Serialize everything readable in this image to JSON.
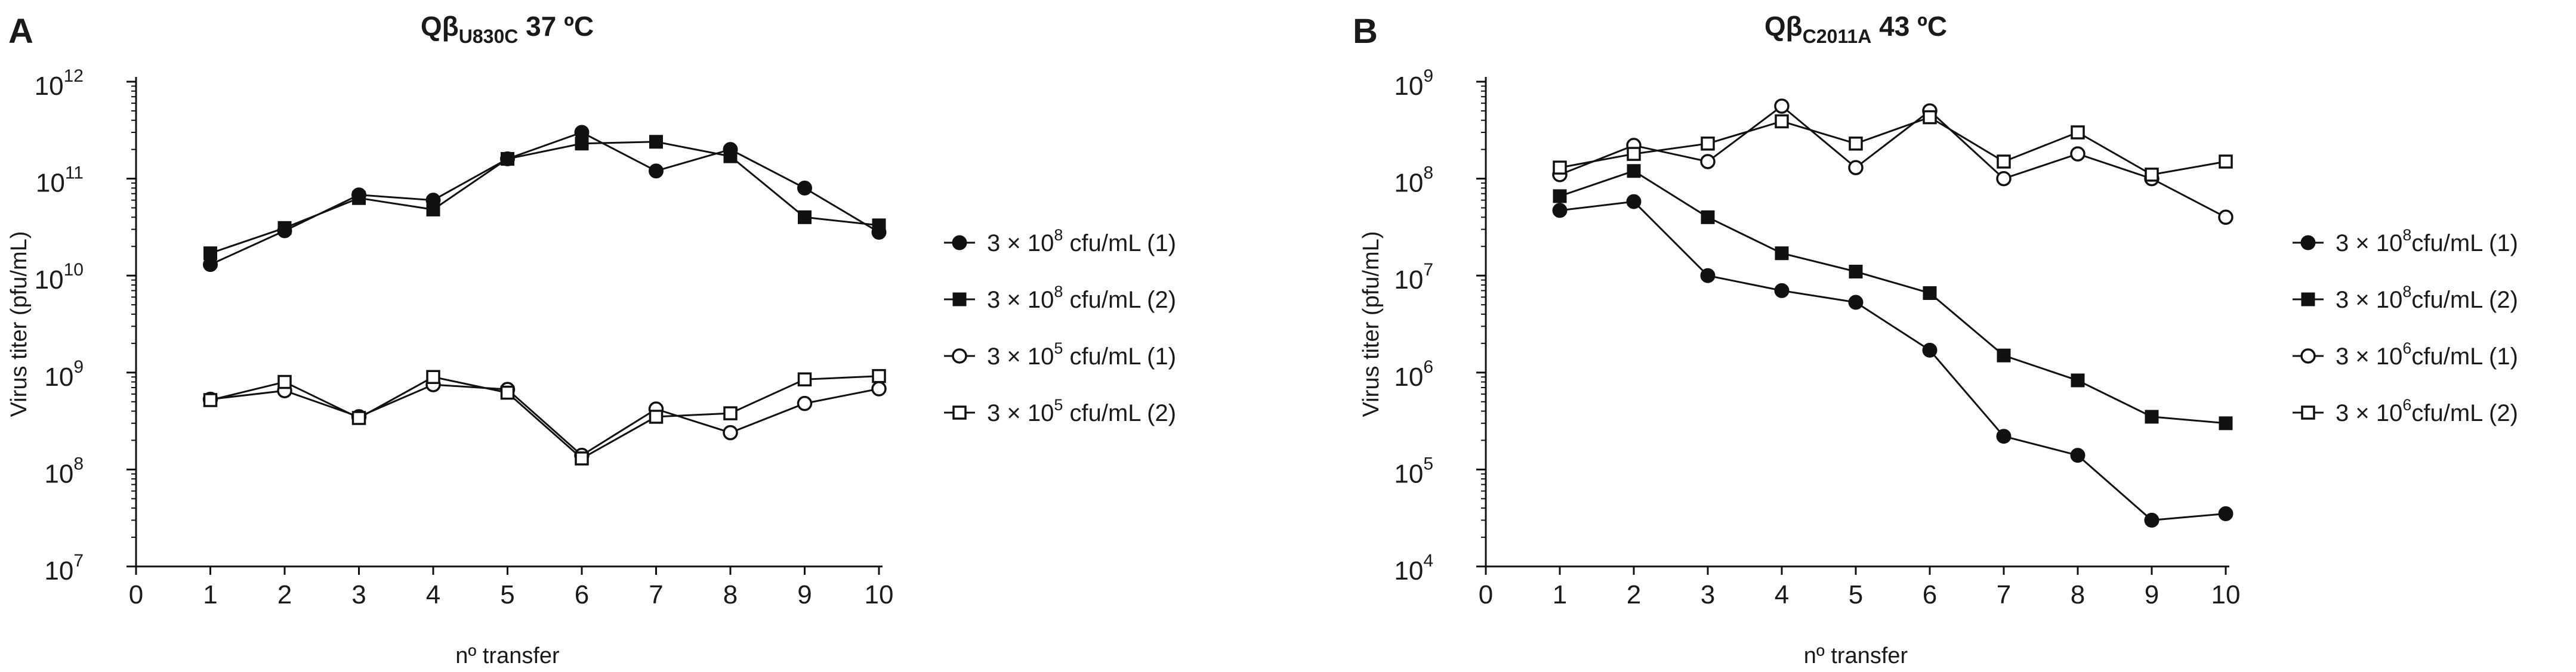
{
  "chart_data": [
    {
      "type": "line",
      "panel_label": "A",
      "title": {
        "main": "Qβ",
        "sub": "U830C",
        "suffix": " 37 ºC"
      },
      "xlabel": "nº transfer",
      "ylabel": "Virus titer (pfu/mL)",
      "xlim": [
        0,
        10
      ],
      "xticks": [
        "0",
        "1",
        "2",
        "3",
        "4",
        "5",
        "6",
        "7",
        "8",
        "9",
        "10"
      ],
      "y_scale": "log",
      "ylim_exp": [
        7,
        12
      ],
      "yticks": [
        {
          "base": "10",
          "exp": "7"
        },
        {
          "base": "10",
          "exp": "8"
        },
        {
          "base": "10",
          "exp": "9"
        },
        {
          "base": "10",
          "exp": "10"
        },
        {
          "base": "10",
          "exp": "11"
        },
        {
          "base": "10",
          "exp": "12"
        }
      ],
      "grid": false,
      "legend_position": "right",
      "series": [
        {
          "name": {
            "pre": "3 × 10",
            "sup": "8",
            "post": " cfu/mL (1)"
          },
          "marker": "filled-circle",
          "x": [
            1,
            2,
            3,
            4,
            5,
            6,
            7,
            8,
            9,
            10
          ],
          "y": [
            13000000000.0,
            29000000000.0,
            68000000000.0,
            60000000000.0,
            160000000000.0,
            300000000000.0,
            120000000000.0,
            200000000000.0,
            80000000000.0,
            28000000000.0
          ]
        },
        {
          "name": {
            "pre": "3 × 10",
            "sup": "8",
            "post": " cfu/mL (2)"
          },
          "marker": "filled-square",
          "x": [
            1,
            2,
            3,
            4,
            5,
            6,
            7,
            8,
            9,
            10
          ],
          "y": [
            17000000000.0,
            31000000000.0,
            63000000000.0,
            48000000000.0,
            160000000000.0,
            230000000000.0,
            240000000000.0,
            170000000000.0,
            40000000000.0,
            33000000000.0
          ]
        },
        {
          "name": {
            "pre": "3 × 10",
            "sup": "5",
            "post": " cfu/mL (1)"
          },
          "marker": "open-circle",
          "x": [
            1,
            2,
            3,
            4,
            5,
            6,
            7,
            8,
            9,
            10
          ],
          "y": [
            530000000.0,
            650000000.0,
            350000000.0,
            750000000.0,
            670000000.0,
            140000000.0,
            420000000.0,
            240000000.0,
            480000000.0,
            680000000.0
          ]
        },
        {
          "name": {
            "pre": "3 × 10",
            "sup": "5",
            "post": " cfu/mL (2)"
          },
          "marker": "open-square",
          "x": [
            1,
            2,
            3,
            4,
            5,
            6,
            7,
            8,
            9,
            10
          ],
          "y": [
            520000000.0,
            800000000.0,
            340000000.0,
            900000000.0,
            620000000.0,
            130000000.0,
            350000000.0,
            380000000.0,
            850000000.0,
            920000000.0
          ]
        }
      ]
    },
    {
      "type": "line",
      "panel_label": "B",
      "title": {
        "main": "Qβ",
        "sub": "C2011A",
        "suffix": " 43 ºC"
      },
      "xlabel": "nº transfer",
      "ylabel": "Virus titer (pfu/mL)",
      "xlim": [
        0,
        10
      ],
      "xticks": [
        "0",
        "1",
        "2",
        "3",
        "4",
        "5",
        "6",
        "7",
        "8",
        "9",
        "10"
      ],
      "y_scale": "log",
      "ylim_exp": [
        4,
        9
      ],
      "yticks": [
        {
          "base": "10",
          "exp": "4"
        },
        {
          "base": "10",
          "exp": "5"
        },
        {
          "base": "10",
          "exp": "6"
        },
        {
          "base": "10",
          "exp": "7"
        },
        {
          "base": "10",
          "exp": "8"
        },
        {
          "base": "10",
          "exp": "9"
        }
      ],
      "grid": false,
      "legend_position": "right",
      "series": [
        {
          "name": {
            "pre": "3 × 10",
            "sup": "8",
            "post": "cfu/mL (1)"
          },
          "marker": "filled-circle",
          "x": [
            1,
            2,
            3,
            4,
            5,
            6,
            7,
            8,
            9,
            10
          ],
          "y": [
            47000000.0,
            58000000.0,
            10000000.0,
            7000000.0,
            5300000.0,
            1700000.0,
            220000.0,
            140000.0,
            30000.0,
            35000.0
          ]
        },
        {
          "name": {
            "pre": "3 × 10",
            "sup": "8",
            "post": "cfu/mL (2)"
          },
          "marker": "filled-square",
          "x": [
            1,
            2,
            3,
            4,
            5,
            6,
            7,
            8,
            9,
            10
          ],
          "y": [
            66000000.0,
            120000000.0,
            40000000.0,
            17000000.0,
            11000000.0,
            6600000.0,
            1500000.0,
            830000.0,
            350000.0,
            300000.0
          ]
        },
        {
          "name": {
            "pre": "3 × 10",
            "sup": "6",
            "post": "cfu/mL (1)"
          },
          "marker": "open-circle",
          "x": [
            1,
            2,
            3,
            4,
            5,
            6,
            7,
            8,
            9,
            10
          ],
          "y": [
            110000000.0,
            220000000.0,
            150000000.0,
            560000000.0,
            130000000.0,
            500000000.0,
            100000000.0,
            180000000.0,
            100000000.0,
            40000000.0
          ]
        },
        {
          "name": {
            "pre": "3 × 10",
            "sup": "6",
            "post": "cfu/mL (2)"
          },
          "marker": "open-square",
          "x": [
            1,
            2,
            3,
            4,
            5,
            6,
            7,
            8,
            9,
            10
          ],
          "y": [
            130000000.0,
            180000000.0,
            230000000.0,
            390000000.0,
            230000000.0,
            430000000.0,
            150000000.0,
            300000000.0,
            110000000.0,
            150000000.0
          ]
        }
      ]
    }
  ]
}
